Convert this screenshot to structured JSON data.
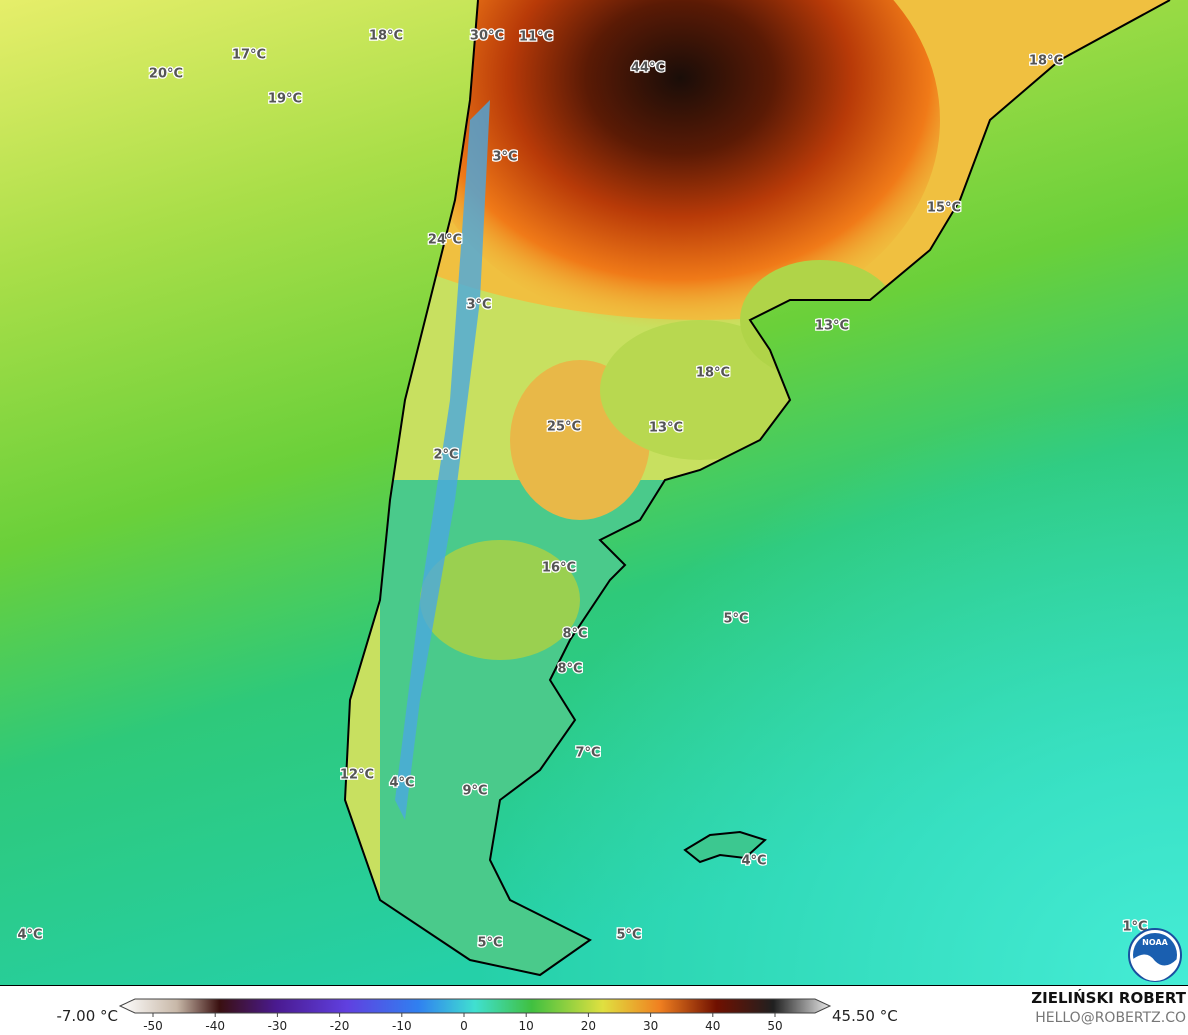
{
  "map_labels": [
    "18°C",
    "17°C",
    "20°C",
    "19°C",
    "30°C",
    "11°C",
    "44°C",
    "18°C",
    "3°C",
    "15°C",
    "24°C",
    "3°C",
    "13°C",
    "18°C",
    "25°C",
    "13°C",
    "2°C",
    "16°C",
    "5°C",
    "8°C",
    "8°C",
    "7°C",
    "12°C",
    "4°C",
    "9°C",
    "4°C",
    "1°C",
    "4°C",
    "5°C",
    "5°C"
  ],
  "colorbar": {
    "min_label": "-7.00 °C",
    "max_label": "45.50 °C",
    "ticks": [
      -50,
      -40,
      -30,
      -20,
      -10,
      0,
      10,
      20,
      30,
      40,
      50
    ]
  },
  "credit": {
    "author": "ZIELIŃSKI ROBERT",
    "contact": "HELLO@ROBERTZ.CO",
    "logo": "NOAA"
  }
}
